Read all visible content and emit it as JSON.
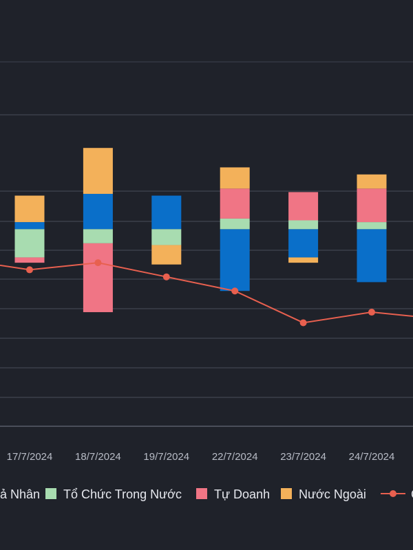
{
  "chart_data": {
    "type": "bar",
    "stacked": true,
    "categories": [
      "17/7/2024",
      "18/7/2024",
      "19/7/2024",
      "22/7/2024",
      "23/7/2024",
      "24/7/2024"
    ],
    "ylim": [
      -112,
      122
    ],
    "grid": true,
    "legend_position": "bottom",
    "series": [
      {
        "name": "Cá Nhân",
        "color": "#0a6fc9",
        "values": [
          4,
          20,
          19,
          -35,
          -16,
          -30
        ]
      },
      {
        "name": "Tổ Chức Trong Nước",
        "color": "#a8dcb0",
        "values": [
          -16,
          -8,
          -9,
          6,
          5,
          4
        ]
      },
      {
        "name": "Tự Doanh",
        "color": "#f07585",
        "values": [
          -3,
          -39,
          0,
          17,
          16,
          19
        ]
      },
      {
        "name": "Nước Ngoài",
        "color": "#f3b15a",
        "values": [
          15,
          26,
          -11,
          12,
          -3,
          8
        ]
      }
    ],
    "line_series": {
      "name": "C",
      "color": "#e8604f",
      "values": [
        -23,
        -19,
        -27,
        -35,
        -53,
        -47
      ]
    },
    "legend": {
      "items": [
        {
          "label": "Cá Nhân",
          "visible_text": "ả Nhân",
          "color": "#0a6fc9"
        },
        {
          "label": "Tổ Chức Trong Nước",
          "visible_text": "Tổ Chức Trong Nước",
          "color": "#a8dcb0"
        },
        {
          "label": "Tự Doanh",
          "visible_text": "Tự Doanh",
          "color": "#f07585"
        },
        {
          "label": "Nước Ngoài",
          "visible_text": "Nước Ngoài",
          "color": "#f3b15a"
        },
        {
          "label": "C",
          "visible_text": "C",
          "color": "#e8604f",
          "marker": "line"
        }
      ]
    }
  }
}
